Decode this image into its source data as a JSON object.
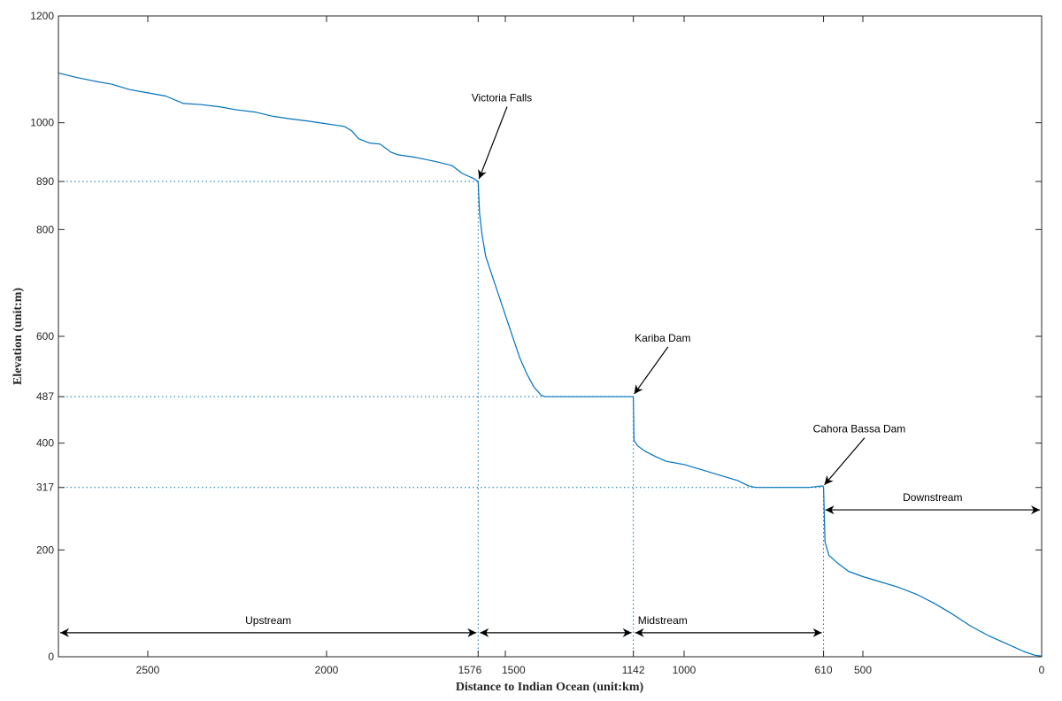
{
  "chart_data": {
    "type": "line",
    "title": "",
    "xlabel": "Distance to Indian Ocean (unit:km)",
    "ylabel": "Elevation (unit:m)",
    "xlim": [
      2750,
      0
    ],
    "ylim": [
      0,
      1200
    ],
    "x_reversed": true,
    "grid": false,
    "x_ticks": [
      2500,
      2000,
      1576,
      1500,
      1142,
      1000,
      610,
      500,
      0
    ],
    "y_ticks": [
      0,
      200,
      317,
      400,
      487,
      600,
      800,
      890,
      1000,
      1200
    ],
    "series": [
      {
        "color": "#0072BD",
        "points": [
          [
            2750,
            1093
          ],
          [
            2700,
            1085
          ],
          [
            2650,
            1078
          ],
          [
            2600,
            1072
          ],
          [
            2550,
            1062
          ],
          [
            2500,
            1056
          ],
          [
            2450,
            1050
          ],
          [
            2400,
            1036
          ],
          [
            2350,
            1034
          ],
          [
            2300,
            1030
          ],
          [
            2250,
            1024
          ],
          [
            2200,
            1020
          ],
          [
            2150,
            1012
          ],
          [
            2100,
            1007
          ],
          [
            2050,
            1003
          ],
          [
            2000,
            998
          ],
          [
            1950,
            993
          ],
          [
            1930,
            985
          ],
          [
            1910,
            970
          ],
          [
            1880,
            962
          ],
          [
            1850,
            960
          ],
          [
            1820,
            945
          ],
          [
            1800,
            940
          ],
          [
            1750,
            935
          ],
          [
            1700,
            928
          ],
          [
            1650,
            920
          ],
          [
            1620,
            905
          ],
          [
            1590,
            896
          ],
          [
            1576,
            890
          ],
          [
            1572,
            830
          ],
          [
            1565,
            790
          ],
          [
            1555,
            750
          ],
          [
            1540,
            720
          ],
          [
            1520,
            680
          ],
          [
            1500,
            640
          ],
          [
            1480,
            600
          ],
          [
            1460,
            560
          ],
          [
            1440,
            530
          ],
          [
            1420,
            505
          ],
          [
            1400,
            490
          ],
          [
            1390,
            487
          ],
          [
            1300,
            487
          ],
          [
            1200,
            487
          ],
          [
            1142,
            487
          ],
          [
            1140,
            405
          ],
          [
            1130,
            395
          ],
          [
            1110,
            385
          ],
          [
            1080,
            375
          ],
          [
            1050,
            366
          ],
          [
            1000,
            360
          ],
          [
            950,
            350
          ],
          [
            900,
            340
          ],
          [
            850,
            330
          ],
          [
            820,
            320
          ],
          [
            800,
            317
          ],
          [
            700,
            317
          ],
          [
            650,
            317
          ],
          [
            612,
            320
          ],
          [
            610,
            317
          ],
          [
            606,
            215
          ],
          [
            595,
            190
          ],
          [
            570,
            175
          ],
          [
            540,
            160
          ],
          [
            500,
            150
          ],
          [
            450,
            140
          ],
          [
            400,
            130
          ],
          [
            350,
            117
          ],
          [
            300,
            100
          ],
          [
            250,
            80
          ],
          [
            200,
            58
          ],
          [
            150,
            40
          ],
          [
            100,
            25
          ],
          [
            50,
            10
          ],
          [
            20,
            3
          ],
          [
            0,
            1
          ]
        ]
      }
    ],
    "reference_lines": [
      {
        "axis": "y",
        "value": 890,
        "x_from": 2750,
        "x_to": 1576
      },
      {
        "axis": "y",
        "value": 487,
        "x_from": 2750,
        "x_to": 1142
      },
      {
        "axis": "y",
        "value": 317,
        "x_from": 2750,
        "x_to": 610
      },
      {
        "axis": "x",
        "value": 1576,
        "y_from": 0,
        "y_to": 890
      },
      {
        "axis": "x",
        "value": 1142,
        "y_from": 0,
        "y_to": 487
      },
      {
        "axis": "x",
        "value": 610,
        "y_from": 0,
        "y_to": 317
      }
    ],
    "annotations": [
      {
        "text": "Victoria Falls",
        "x": 1576,
        "y": 890,
        "text_x": 1510,
        "text_y": 1040
      },
      {
        "text": "Kariba Dam",
        "x": 1142,
        "y": 487,
        "text_x": 1060,
        "text_y": 590
      },
      {
        "text": "Cahora Bassa Dam",
        "x": 610,
        "y": 317,
        "text_x": 510,
        "text_y": 420
      }
    ],
    "segments": [
      {
        "label": "Upstream",
        "from": 2750,
        "to": 1576,
        "y": 45,
        "label_x": 2163
      },
      {
        "label": "",
        "from": 1576,
        "to": 1142,
        "y": 45,
        "label_x": 1359
      },
      {
        "label": "Midstream",
        "from": 1142,
        "to": 610,
        "y": 45,
        "label_x": 1060
      },
      {
        "label": "Downstream",
        "from": 610,
        "to": 0,
        "y": 275,
        "label_x": 305
      }
    ]
  }
}
